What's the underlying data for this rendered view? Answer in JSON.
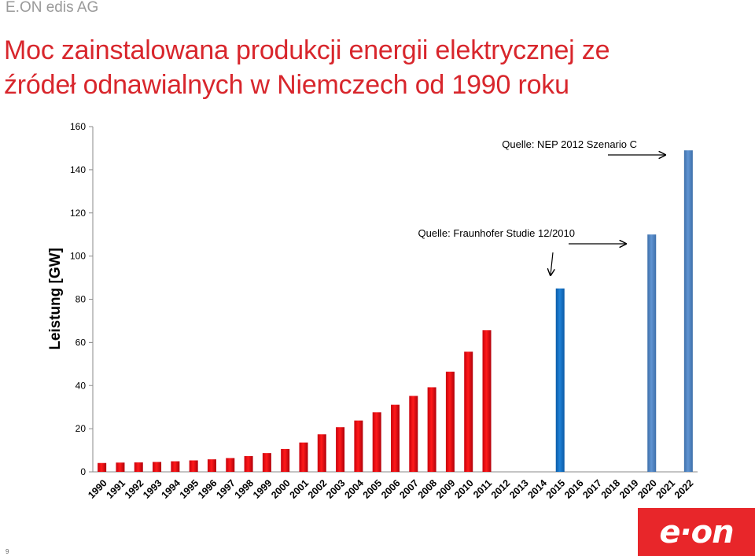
{
  "company": "E.ON edis AG",
  "title_line1": "Moc zainstalowana produkcji energii elektrycznej ze",
  "title_line2": "źródeł odnawialnych w Niemczech od 1990 roku",
  "page_number": "9",
  "logo": "e·on",
  "colors": {
    "historic": "#e3000f",
    "scenario_2015": "#0f6fc0",
    "scenario_nep": "#4f81bd",
    "accent": "#d8262c"
  },
  "chart_data": {
    "type": "bar",
    "ylabel": "Leistung [GW]",
    "ylim": [
      0,
      160
    ],
    "yticks": [
      0,
      20,
      40,
      60,
      80,
      100,
      120,
      140,
      160
    ],
    "categories": [
      "1990",
      "1991",
      "1992",
      "1993",
      "1994",
      "1995",
      "1996",
      "1997",
      "1998",
      "1999",
      "2000",
      "2001",
      "2002",
      "2003",
      "2004",
      "2005",
      "2006",
      "2007",
      "2008",
      "2009",
      "2010",
      "2011",
      "2012",
      "2013",
      "2014",
      "2015",
      "2016",
      "2017",
      "2018",
      "2019",
      "2020",
      "2021",
      "2022"
    ],
    "series": [
      {
        "values": [
          4.1,
          4.3,
          4.4,
          4.6,
          4.9,
          5.3,
          5.8,
          6.4,
          7.3,
          8.7,
          10.6,
          13.6,
          17.4,
          20.7,
          23.8,
          27.6,
          31.1,
          35.2,
          39.2,
          46.4,
          55.7,
          65.6,
          null,
          null,
          null,
          null,
          null,
          null,
          null,
          null,
          null,
          null,
          null
        ],
        "color": "#e3000f"
      },
      {
        "values": [
          null,
          null,
          null,
          null,
          null,
          null,
          null,
          null,
          null,
          null,
          null,
          null,
          null,
          null,
          null,
          null,
          null,
          null,
          null,
          null,
          null,
          null,
          null,
          null,
          null,
          85,
          null,
          null,
          null,
          null,
          null,
          null,
          null
        ],
        "color": "#0f6fc0"
      },
      {
        "values": [
          null,
          null,
          null,
          null,
          null,
          null,
          null,
          null,
          null,
          null,
          null,
          null,
          null,
          null,
          null,
          null,
          null,
          null,
          null,
          null,
          null,
          null,
          null,
          null,
          null,
          null,
          null,
          null,
          null,
          null,
          110,
          null,
          149
        ],
        "color": "#4f81bd"
      }
    ],
    "annotations": [
      {
        "text": "Quelle: NEP 2012 Szenario C"
      },
      {
        "text": "Quelle: Fraunhofer Studie 12/2010"
      }
    ],
    "grid": false
  }
}
